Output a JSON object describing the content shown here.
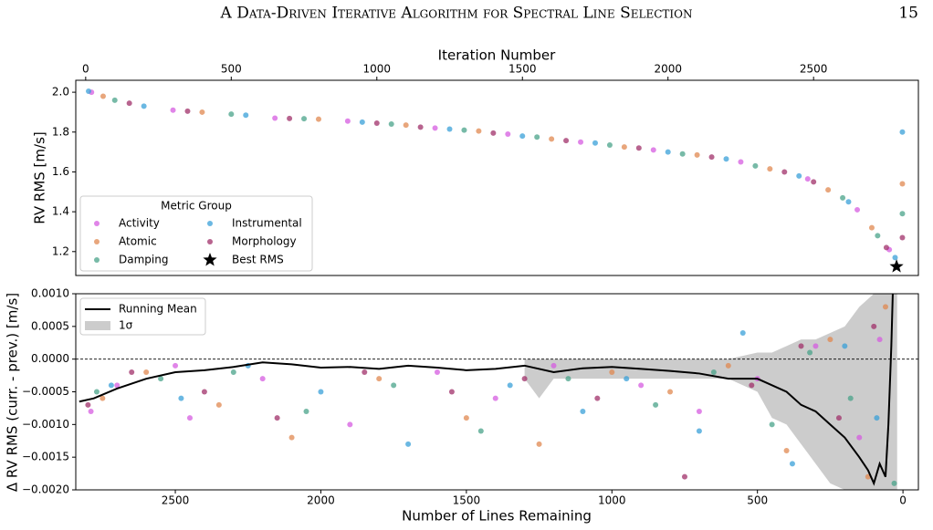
{
  "header": {
    "title": "A Data-Driven Iterative Algorithm for Spectral Line Selection",
    "page_number": "15"
  },
  "chart_data": [
    {
      "type": "scatter",
      "xlabel": "Iteration Number",
      "ylabel": "RV RMS [m/s]",
      "xlim": [
        -34,
        2860
      ],
      "xticks": [
        0,
        500,
        1000,
        1500,
        2000,
        2500
      ],
      "ylim": [
        1.08,
        2.06
      ],
      "yticks": [
        1.2,
        1.4,
        1.6,
        1.8,
        {
          "value": 2,
          "label": "2.0"
        }
      ],
      "legend_title": "Metric Group",
      "legend": "lower left",
      "series": [
        {
          "name": "Activity",
          "color": "#d65ce0",
          "x": [
            20,
            300,
            650,
            900,
            1200,
            1450,
            1700,
            1950,
            2250,
            2480,
            2650,
            2760
          ],
          "values": [
            2.0,
            1.91,
            1.87,
            1.855,
            1.82,
            1.79,
            1.75,
            1.71,
            1.65,
            1.565,
            1.41,
            1.21
          ]
        },
        {
          "name": "Atomic",
          "color": "#e08850",
          "x": [
            60,
            400,
            800,
            1100,
            1350,
            1600,
            1850,
            2100,
            2350,
            2550,
            2700,
            2805
          ],
          "values": [
            1.98,
            1.9,
            1.865,
            1.835,
            1.805,
            1.765,
            1.725,
            1.685,
            1.615,
            1.51,
            1.32,
            1.54
          ]
        },
        {
          "name": "Damping",
          "color": "#4aa38a",
          "x": [
            100,
            500,
            750,
            1050,
            1300,
            1550,
            1800,
            2050,
            2300,
            2600,
            2720,
            2805
          ],
          "values": [
            1.96,
            1.89,
            1.867,
            1.84,
            1.81,
            1.775,
            1.735,
            1.69,
            1.63,
            1.47,
            1.28,
            1.39
          ]
        },
        {
          "name": "Instrumental",
          "color": "#3aa0d8",
          "x": [
            10,
            200,
            550,
            950,
            1250,
            1500,
            1750,
            2000,
            2200,
            2450,
            2620,
            2780,
            2805
          ],
          "values": [
            2.005,
            1.93,
            1.885,
            1.85,
            1.815,
            1.78,
            1.745,
            1.7,
            1.665,
            1.58,
            1.45,
            1.17,
            1.8
          ]
        },
        {
          "name": "Morphology",
          "color": "#a0306a",
          "x": [
            150,
            350,
            700,
            1000,
            1150,
            1400,
            1650,
            1900,
            2150,
            2400,
            2500,
            2750,
            2805
          ],
          "values": [
            1.945,
            1.905,
            1.868,
            1.845,
            1.825,
            1.795,
            1.757,
            1.72,
            1.675,
            1.6,
            1.55,
            1.22,
            1.27
          ]
        }
      ],
      "best": {
        "name": "Best RMS",
        "color": "#000000",
        "x": 2785,
        "value": 1.125
      }
    },
    {
      "type": "scatter",
      "xlabel": "Number of Lines Remaining",
      "ylabel": "Δ RV RMS (curr. - prev.) [m/s]",
      "xlim": [
        2842,
        -53
      ],
      "xticks": [
        2500,
        2000,
        1500,
        1000,
        500,
        0
      ],
      "ylim": [
        -0.002,
        0.001
      ],
      "yticks": [
        {
          "value": 0.001,
          "label": "0.0010"
        },
        {
          "value": 0.0005,
          "label": "0.0005"
        },
        {
          "value": 0,
          "label": "0.0000"
        },
        {
          "value": -0.0005,
          "label": "−0.0005"
        },
        {
          "value": -0.001,
          "label": "−0.0010"
        },
        {
          "value": -0.0015,
          "label": "−0.0015"
        },
        {
          "value": -0.002,
          "label": "−0.0020"
        }
      ],
      "hline": 0,
      "legend": "upper left",
      "series": [
        {
          "color": "#d65ce0",
          "x": [
            2790,
            2700,
            2500,
            2450,
            2200,
            1900,
            1600,
            1400,
            1200,
            900,
            700,
            500,
            300,
            150,
            80
          ],
          "values": [
            -0.0008,
            -0.0004,
            -0.0001,
            -0.0009,
            -0.0003,
            -0.001,
            -0.0002,
            -0.0006,
            -0.0001,
            -0.0004,
            -0.0008,
            -0.0003,
            0.0002,
            -0.0012,
            0.0003
          ]
        },
        {
          "color": "#e08850",
          "x": [
            2750,
            2600,
            2350,
            2100,
            1800,
            1500,
            1250,
            1000,
            800,
            600,
            400,
            250,
            120,
            60
          ],
          "values": [
            -0.0006,
            -0.0002,
            -0.0007,
            -0.0012,
            -0.0003,
            -0.0009,
            -0.0013,
            -0.0002,
            -0.0005,
            -0.0001,
            -0.0014,
            0.0003,
            -0.0018,
            0.0008
          ]
        },
        {
          "color": "#4aa38a",
          "x": [
            2770,
            2550,
            2300,
            2050,
            1750,
            1450,
            1150,
            850,
            650,
            450,
            320,
            180,
            30
          ],
          "values": [
            -0.0005,
            -0.0003,
            -0.0002,
            -0.0008,
            -0.0004,
            -0.0011,
            -0.0003,
            -0.0007,
            -0.0002,
            -0.001,
            0.0001,
            -0.0006,
            -0.0019
          ]
        },
        {
          "color": "#3aa0d8",
          "x": [
            2720,
            2480,
            2250,
            2000,
            1700,
            1350,
            1100,
            950,
            700,
            550,
            380,
            200,
            90
          ],
          "values": [
            -0.0004,
            -0.0006,
            -0.0001,
            -0.0005,
            -0.0013,
            -0.0004,
            -0.0008,
            -0.0003,
            -0.0011,
            0.0004,
            -0.0016,
            0.0002,
            -0.0009
          ]
        },
        {
          "color": "#a0306a",
          "x": [
            2800,
            2650,
            2400,
            2150,
            1850,
            1550,
            1300,
            1050,
            750,
            520,
            350,
            220,
            100
          ],
          "values": [
            -0.0007,
            -0.0002,
            -0.0005,
            -0.0009,
            -0.0002,
            -0.0005,
            -0.0003,
            -0.0006,
            -0.0018,
            -0.0004,
            0.0002,
            -0.0009,
            0.0005
          ]
        }
      ],
      "band": {
        "name": "1σ",
        "color": "#cccccc",
        "x": [
          1300,
          1250,
          1200,
          600,
          500,
          450,
          400,
          350,
          300,
          250,
          200,
          150,
          100,
          50,
          20
        ],
        "lower": [
          -0.0003,
          -0.0006,
          -0.0003,
          -0.0003,
          -0.0005,
          -0.0009,
          -0.001,
          -0.0013,
          -0.0016,
          -0.0019,
          -0.002,
          -0.002,
          -0.002,
          -0.002,
          -0.002
        ],
        "upper": [
          0,
          0,
          0,
          0,
          0.0001,
          0.0001,
          0.0002,
          0.0003,
          0.0003,
          0.0004,
          0.0005,
          0.0008,
          0.001,
          0.001,
          0.001
        ]
      },
      "running_mean": {
        "name": "Running Mean",
        "color": "#000000",
        "x": [
          2830,
          2780,
          2700,
          2600,
          2500,
          2400,
          2300,
          2200,
          2100,
          2000,
          1900,
          1800,
          1700,
          1600,
          1500,
          1400,
          1300,
          1200,
          1100,
          1000,
          900,
          800,
          700,
          600,
          500,
          400,
          350,
          300,
          250,
          200,
          150,
          120,
          100,
          80,
          60,
          50,
          40,
          35
        ],
        "values": [
          -0.00065,
          -0.0006,
          -0.00045,
          -0.0003,
          -0.0002,
          -0.00017,
          -0.00012,
          -5e-05,
          -8e-05,
          -0.00013,
          -0.00012,
          -0.00015,
          -0.0001,
          -0.00013,
          -0.00017,
          -0.00015,
          -0.0001,
          -0.0002,
          -0.00014,
          -0.00012,
          -0.00015,
          -0.00018,
          -0.00022,
          -0.0003,
          -0.0003,
          -0.0005,
          -0.0007,
          -0.0008,
          -0.001,
          -0.0012,
          -0.0015,
          -0.0017,
          -0.0019,
          -0.0016,
          -0.0018,
          -0.001,
          0.0002,
          0.001
        ]
      }
    }
  ]
}
